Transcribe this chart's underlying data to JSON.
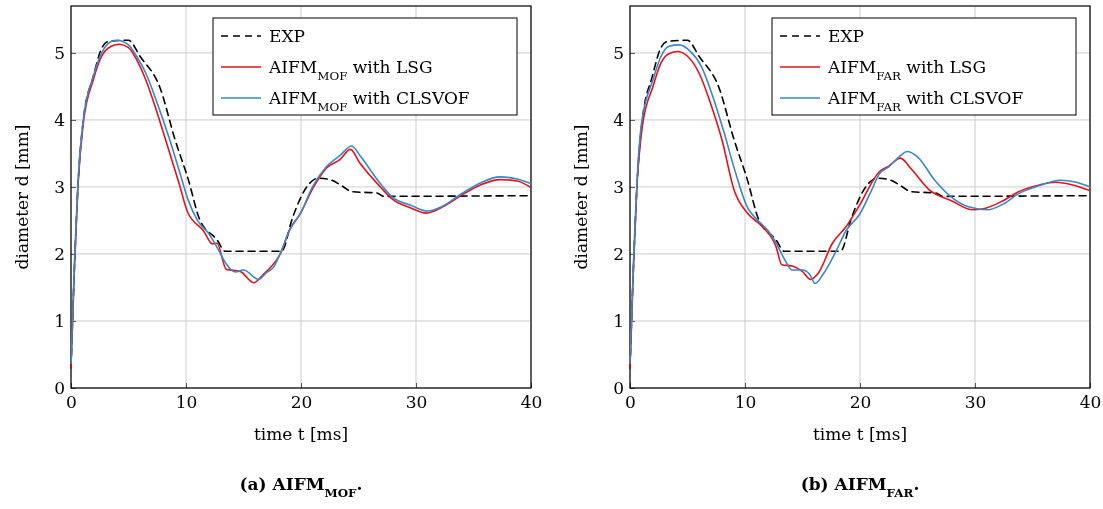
{
  "chart_data": [
    {
      "type": "line",
      "xlabel": "time t [ms]",
      "ylabel": "diameter d [mm]",
      "annotations": [
        "(a) AIFM$_{MOF}$."
      ],
      "xlim": [
        0,
        40
      ],
      "ylim": [
        0,
        5.7
      ],
      "xticks": [
        0,
        10,
        20,
        30,
        40
      ],
      "yticks": [
        0,
        1,
        2,
        3,
        4,
        5
      ],
      "grid": true,
      "legend": "top right",
      "marker": "none",
      "series": [
        {
          "name": "EXP",
          "color": "#000000",
          "line_style": "dashed",
          "x": [
            0,
            0.3,
            0.6,
            1.07,
            1.94,
            2.67,
            3.25,
            4.99,
            6.0,
            7.74,
            9.04,
            10.2,
            11.2,
            12.7,
            13.4,
            18.3,
            19.3,
            20.5,
            21.5,
            22.5,
            23.7,
            24.4,
            26.6,
            27.2,
            39.9
          ],
          "values": [
            0.3,
            1.8,
            3.0,
            4.0,
            4.65,
            5.07,
            5.17,
            5.19,
            4.95,
            4.48,
            3.71,
            3.11,
            2.51,
            2.21,
            2.04,
            2.04,
            2.56,
            3.0,
            3.13,
            3.11,
            3.0,
            2.93,
            2.91,
            2.86,
            2.87
          ]
        },
        {
          "name": "AIFM$_{MOF}$ with LSG",
          "color": "#e3121b",
          "line_style": "solid",
          "x": [
            0,
            0.3,
            0.6,
            1.07,
            1.94,
            2.67,
            3.5,
            4.2,
            5,
            5.7,
            6.5,
            7.5,
            8.5,
            9.4,
            10.2,
            10.5,
            11.5,
            12.3,
            12.7,
            13.5,
            14.7,
            15.9,
            16.7,
            17.3,
            18.2,
            19.0,
            19.9,
            21.1,
            22.2,
            23.4,
            24.3,
            25.1,
            26.9,
            28.0,
            29.5,
            30.9,
            32.4,
            33.8,
            35.6,
            37.3,
            38.8,
            39.9
          ],
          "values": [
            0.3,
            1.8,
            3.0,
            3.95,
            4.6,
            4.95,
            5.1,
            5.13,
            5.08,
            4.9,
            4.6,
            4.1,
            3.55,
            3.05,
            2.6,
            2.52,
            2.35,
            2.15,
            2.16,
            1.77,
            1.74,
            1.57,
            1.69,
            1.79,
            2.0,
            2.36,
            2.59,
            3.0,
            3.28,
            3.41,
            3.56,
            3.36,
            3.0,
            2.81,
            2.69,
            2.61,
            2.71,
            2.86,
            3.03,
            3.11,
            3.09,
            3.0
          ]
        },
        {
          "name": "AIFM$_{MOF}$ with CLSVOF",
          "color": "#3b87c6",
          "line_style": "solid",
          "x": [
            0,
            0.3,
            0.6,
            1.07,
            1.94,
            2.67,
            3.5,
            4.0,
            5,
            5.7,
            6.5,
            7.5,
            8.5,
            9.4,
            10.2,
            11,
            12,
            12.7,
            13.5,
            14.3,
            15,
            16.3,
            17,
            17.6,
            18.3,
            19,
            20,
            21,
            22.2,
            23.4,
            24.4,
            25.2,
            26.9,
            28,
            29.5,
            31,
            32.4,
            33.8,
            35.6,
            37.3,
            38.8,
            40
          ],
          "values": [
            0.37,
            1.85,
            3.05,
            4.0,
            4.65,
            5.0,
            5.17,
            5.19,
            5.12,
            4.95,
            4.7,
            4.25,
            3.75,
            3.25,
            2.8,
            2.5,
            2.3,
            2.1,
            1.85,
            1.73,
            1.76,
            1.62,
            1.72,
            1.8,
            2.05,
            2.35,
            2.62,
            3.0,
            3.3,
            3.47,
            3.61,
            3.45,
            3.05,
            2.84,
            2.73,
            2.64,
            2.72,
            2.88,
            3.06,
            3.15,
            3.12,
            3.05
          ]
        }
      ]
    },
    {
      "type": "line",
      "xlabel": "time t [ms]",
      "ylabel": "diameter d [mm]",
      "annotations": [
        "(b) AIFM$_{FAR}$."
      ],
      "xlim": [
        0,
        40
      ],
      "ylim": [
        0,
        5.7
      ],
      "xticks": [
        0,
        10,
        20,
        30,
        40
      ],
      "yticks": [
        0,
        1,
        2,
        3,
        4,
        5
      ],
      "grid": true,
      "legend": "top right",
      "marker": "none",
      "series": [
        {
          "name": "EXP",
          "color": "#000000",
          "line_style": "dashed",
          "x": [
            0,
            0.3,
            0.6,
            1.07,
            1.94,
            2.67,
            3.25,
            4.99,
            6.0,
            7.74,
            9.04,
            10.2,
            11.2,
            12.7,
            13.4,
            18.3,
            19.3,
            20.5,
            21.5,
            22.5,
            23.7,
            24.4,
            26.6,
            27.2,
            39.9
          ],
          "values": [
            0.3,
            1.8,
            3.0,
            4.0,
            4.65,
            5.07,
            5.17,
            5.19,
            4.95,
            4.48,
            3.71,
            3.11,
            2.51,
            2.21,
            2.04,
            2.04,
            2.56,
            3.0,
            3.13,
            3.11,
            3.0,
            2.93,
            2.91,
            2.86,
            2.87
          ]
        },
        {
          "name": "AIFM$_{FAR}$ with LSG",
          "color": "#e3121b",
          "line_style": "solid",
          "x": [
            0,
            0.3,
            0.6,
            1.07,
            2,
            2.7,
            3.3,
            4.1,
            5,
            6,
            7,
            8,
            9.04,
            10.2,
            11.5,
            12.7,
            13.2,
            14.1,
            14.98,
            15.7,
            16.4,
            17.6,
            18.8,
            19.9,
            21.7,
            22.5,
            23.5,
            24.5,
            26,
            28,
            29.8,
            30.6,
            32.4,
            33.8,
            35.6,
            37,
            38.5,
            39.9
          ],
          "values": [
            0.3,
            1.8,
            3.0,
            3.9,
            4.5,
            4.85,
            4.98,
            5.02,
            4.95,
            4.7,
            4.25,
            3.7,
            2.96,
            2.61,
            2.41,
            2.11,
            1.84,
            1.82,
            1.74,
            1.62,
            1.72,
            2.16,
            2.41,
            2.71,
            3.23,
            3.31,
            3.43,
            3.26,
            2.96,
            2.79,
            2.66,
            2.67,
            2.79,
            2.93,
            3.03,
            3.07,
            3.03,
            2.95
          ]
        },
        {
          "name": "AIFM$_{FAR}$ with CLSVOF",
          "color": "#3b87c6",
          "line_style": "solid",
          "x": [
            0,
            0.3,
            0.6,
            1,
            2,
            2.7,
            3.4,
            4.3,
            5.2,
            6.2,
            7.2,
            8.2,
            9.2,
            10.2,
            11,
            12,
            12.6,
            13.5,
            14.1,
            15,
            15.6,
            16.1,
            16.8,
            17.8,
            18.8,
            20,
            21,
            21.7,
            22.5,
            23.4,
            24.1,
            25,
            26.5,
            28,
            29.5,
            31.1,
            32.4,
            33.8,
            35.6,
            37.4,
            38.8,
            40
          ],
          "values": [
            0.37,
            1.85,
            3.05,
            3.95,
            4.6,
            4.95,
            5.1,
            5.12,
            5.03,
            4.8,
            4.35,
            3.8,
            3.2,
            2.7,
            2.52,
            2.35,
            2.2,
            1.9,
            1.76,
            1.76,
            1.7,
            1.56,
            1.7,
            2.0,
            2.35,
            2.6,
            2.95,
            3.2,
            3.3,
            3.45,
            3.53,
            3.45,
            3.1,
            2.84,
            2.7,
            2.66,
            2.74,
            2.9,
            3.02,
            3.1,
            3.07,
            3.0
          ]
        }
      ]
    }
  ]
}
